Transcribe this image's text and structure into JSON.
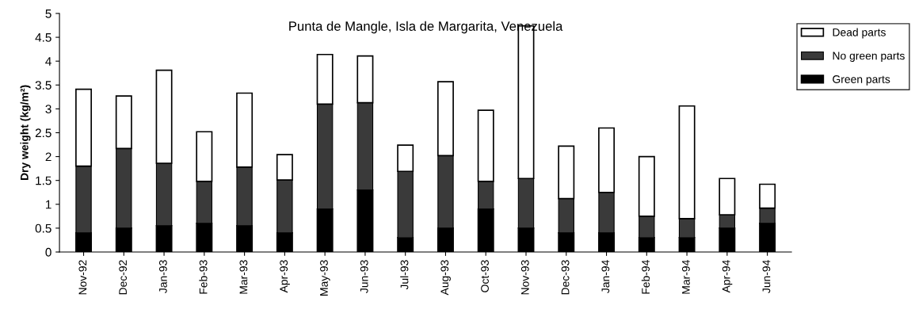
{
  "chart_data": {
    "type": "bar",
    "stacked": true,
    "title": "Punta de Mangle, Isla de Margarita, Venezuela",
    "ylabel": "Dry weight (kg/m²)",
    "categories": [
      "Nov-92",
      "Dec-92",
      "Jan-93",
      "Feb-93",
      "Mar-93",
      "Apr-93",
      "May-93",
      "Jun-93",
      "Jul-93",
      "Aug-93",
      "Oct-93",
      "Nov-93",
      "Dec-93",
      "Jan-94",
      "Feb-94",
      "Mar-94",
      "Apr-94",
      "Jun-94"
    ],
    "series": [
      {
        "name": "Green parts",
        "color": "#000000",
        "values": [
          0.4,
          0.5,
          0.55,
          0.6,
          0.55,
          0.4,
          0.9,
          1.3,
          0.3,
          0.5,
          0.9,
          0.5,
          0.4,
          0.4,
          0.3,
          0.3,
          0.5,
          0.6
        ]
      },
      {
        "name": "No green parts",
        "color": "#3a3a3a",
        "values": [
          1.4,
          1.67,
          1.31,
          0.88,
          1.23,
          1.11,
          2.2,
          1.83,
          1.39,
          1.52,
          0.58,
          1.04,
          0.72,
          0.85,
          0.45,
          0.4,
          0.28,
          0.32
        ]
      },
      {
        "name": "Dead parts",
        "color": "#ffffff",
        "values": [
          1.61,
          1.1,
          1.95,
          1.04,
          1.55,
          0.53,
          1.04,
          0.98,
          0.55,
          1.55,
          1.49,
          3.2,
          1.1,
          1.35,
          1.25,
          2.36,
          0.76,
          0.5
        ]
      }
    ],
    "ylim": [
      0,
      5
    ],
    "yticks": [
      0,
      0.5,
      1,
      1.5,
      2,
      2.5,
      3,
      3.5,
      4,
      4.5,
      5
    ],
    "grid": false,
    "legend": "top right"
  }
}
